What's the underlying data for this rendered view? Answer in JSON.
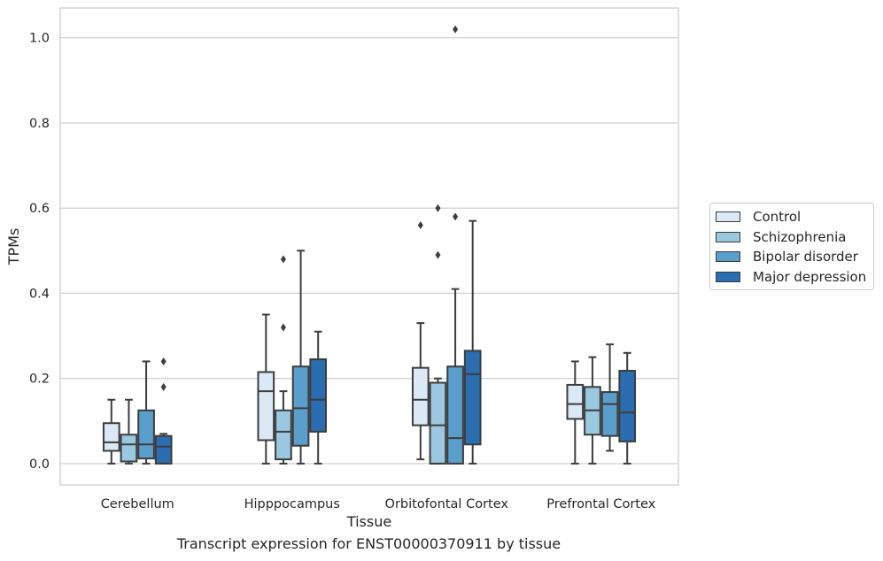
{
  "caption": "Transcript expression for ENST00000370911 by tissue",
  "chart_data": {
    "type": "box",
    "xlabel": "Tissue",
    "ylabel": "TPMs",
    "ylim": [
      -0.05,
      1.07
    ],
    "yticks": [
      0.0,
      0.2,
      0.4,
      0.6,
      0.8,
      1.0
    ],
    "grid": "horizontal",
    "legend_position": "right",
    "categories": [
      "Cerebellum",
      "Hipppocampus",
      "Orbitofontal Cortex",
      "Prefrontal Cortex"
    ],
    "series": [
      {
        "name": "Control",
        "color": "#dbe9f6",
        "boxes": [
          {
            "whisker_low": 0.0,
            "q1": 0.03,
            "median": 0.05,
            "q3": 0.095,
            "whisker_high": 0.15,
            "outliers": []
          },
          {
            "whisker_low": 0.0,
            "q1": 0.055,
            "median": 0.17,
            "q3": 0.215,
            "whisker_high": 0.35,
            "outliers": []
          },
          {
            "whisker_low": 0.01,
            "q1": 0.09,
            "median": 0.15,
            "q3": 0.225,
            "whisker_high": 0.33,
            "outliers": [
              0.56
            ]
          },
          {
            "whisker_low": 0.0,
            "q1": 0.105,
            "median": 0.14,
            "q3": 0.185,
            "whisker_high": 0.24,
            "outliers": []
          }
        ]
      },
      {
        "name": "Schizophrenia",
        "color": "#9ac8e0",
        "boxes": [
          {
            "whisker_low": 0.0,
            "q1": 0.005,
            "median": 0.045,
            "q3": 0.068,
            "whisker_high": 0.15,
            "outliers": []
          },
          {
            "whisker_low": 0.0,
            "q1": 0.01,
            "median": 0.075,
            "q3": 0.125,
            "whisker_high": 0.17,
            "outliers": [
              0.32,
              0.48
            ]
          },
          {
            "whisker_low": 0.0,
            "q1": 0.0,
            "median": 0.09,
            "q3": 0.19,
            "whisker_high": 0.2,
            "outliers": [
              0.49,
              0.6
            ]
          },
          {
            "whisker_low": 0.0,
            "q1": 0.068,
            "median": 0.125,
            "q3": 0.18,
            "whisker_high": 0.25,
            "outliers": []
          }
        ]
      },
      {
        "name": "Bipolar disorder",
        "color": "#5a9ecb",
        "boxes": [
          {
            "whisker_low": 0.0,
            "q1": 0.012,
            "median": 0.045,
            "q3": 0.125,
            "whisker_high": 0.24,
            "outliers": []
          },
          {
            "whisker_low": 0.0,
            "q1": 0.042,
            "median": 0.13,
            "q3": 0.228,
            "whisker_high": 0.5,
            "outliers": []
          },
          {
            "whisker_low": 0.0,
            "q1": 0.0,
            "median": 0.06,
            "q3": 0.228,
            "whisker_high": 0.41,
            "outliers": [
              0.58,
              1.02
            ]
          },
          {
            "whisker_low": 0.03,
            "q1": 0.065,
            "median": 0.14,
            "q3": 0.168,
            "whisker_high": 0.28,
            "outliers": []
          }
        ]
      },
      {
        "name": "Major depression",
        "color": "#2a6db0",
        "boxes": [
          {
            "whisker_low": 0.0,
            "q1": 0.0,
            "median": 0.04,
            "q3": 0.065,
            "whisker_high": 0.07,
            "outliers": [
              0.18,
              0.24
            ]
          },
          {
            "whisker_low": 0.0,
            "q1": 0.075,
            "median": 0.15,
            "q3": 0.245,
            "whisker_high": 0.31,
            "outliers": []
          },
          {
            "whisker_low": 0.0,
            "q1": 0.045,
            "median": 0.21,
            "q3": 0.265,
            "whisker_high": 0.57,
            "outliers": []
          },
          {
            "whisker_low": 0.0,
            "q1": 0.052,
            "median": 0.12,
            "q3": 0.218,
            "whisker_high": 0.26,
            "outliers": []
          }
        ]
      }
    ]
  }
}
